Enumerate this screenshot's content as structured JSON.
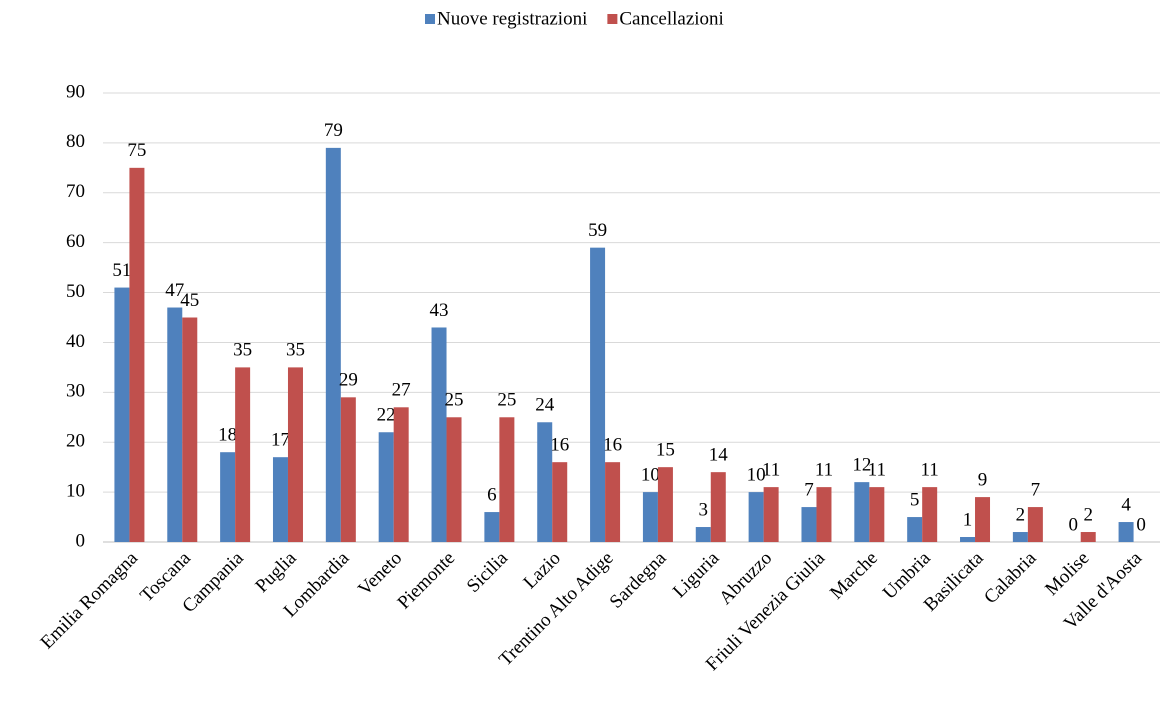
{
  "chart_data": {
    "type": "bar",
    "categories": [
      "Emilia Romagna",
      "Toscana",
      "Campania",
      "Puglia",
      "Lombardia",
      "Veneto",
      "Piemonte",
      "Sicilia",
      "Lazio",
      "Trentino Alto Adige",
      "Sardegna",
      "Liguria",
      "Abruzzo",
      "Friuli Venezia Giulia",
      "Marche",
      "Umbria",
      "Basilicata",
      "Calabria",
      "Molise",
      "Valle d'Aosta"
    ],
    "series": [
      {
        "name": "Nuove registrazioni",
        "color": "#4f81bd",
        "values": [
          51,
          47,
          18,
          17,
          79,
          22,
          43,
          6,
          24,
          59,
          10,
          3,
          10,
          7,
          12,
          5,
          1,
          2,
          0,
          4
        ]
      },
      {
        "name": "Cancellazioni",
        "color": "#c0504d",
        "values": [
          75,
          45,
          35,
          35,
          29,
          27,
          25,
          25,
          16,
          16,
          15,
          14,
          11,
          11,
          11,
          11,
          9,
          7,
          2,
          0
        ]
      }
    ],
    "ylim": [
      0,
      90
    ],
    "yticks": [
      0,
      10,
      20,
      30,
      40,
      50,
      60,
      70,
      80,
      90
    ],
    "grid": true,
    "legend": "top"
  }
}
